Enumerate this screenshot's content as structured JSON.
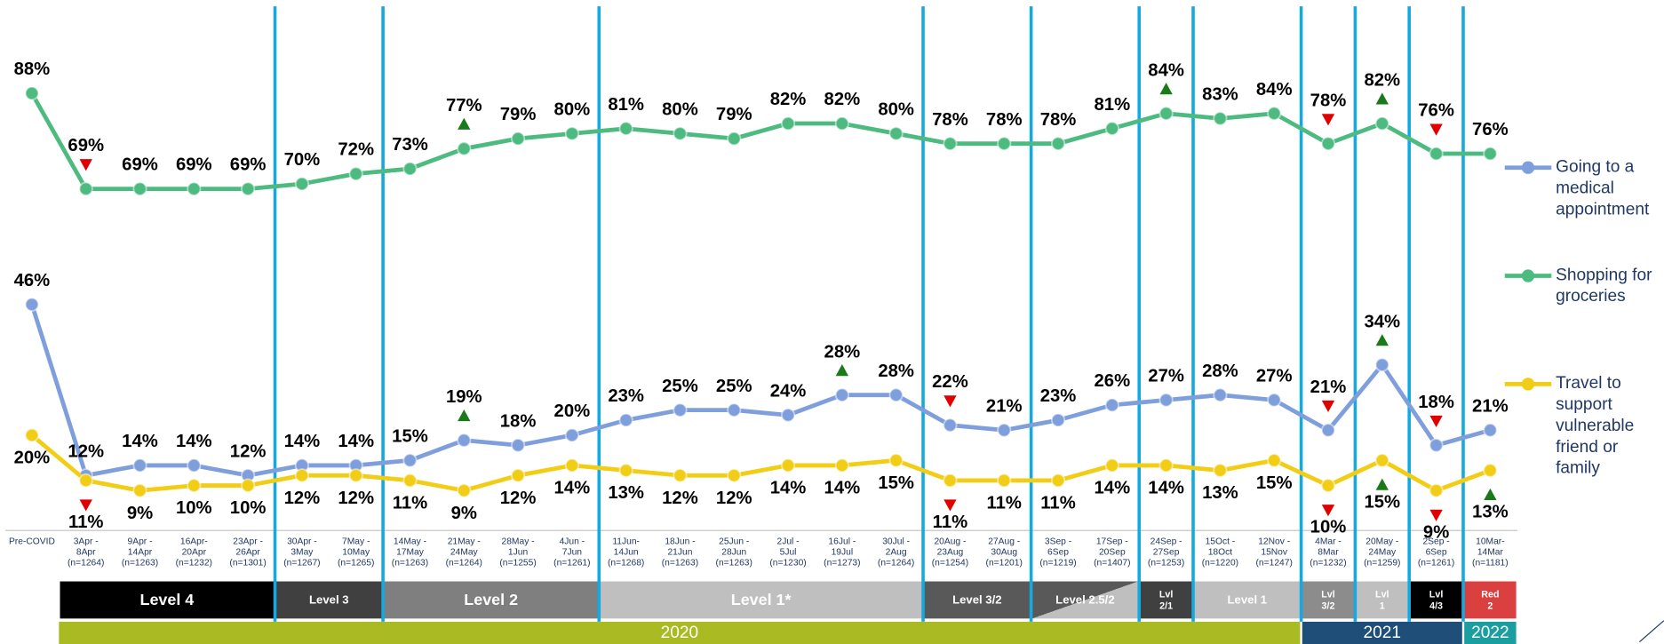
{
  "chart_data": {
    "type": "line",
    "categories": [
      "Pre-COVID",
      "3Apr -\n8Apr\n(n=1264)",
      "9Apr -\n14Apr\n(n=1263)",
      "16Apr-\n20Apr\n(n=1232)",
      "23Apr -\n26Apr\n(n=1301)",
      "30Apr -\n3May\n(n=1267)",
      "7May -\n10May\n(n=1265)",
      "14May -\n17May\n(n=1263)",
      "21May -\n24May\n(n=1264)",
      "28May -\n1Jun\n(n=1255)",
      "4Jun -\n7Jun\n(n=1261)",
      "11Jun-\n14Jun\n(n=1268)",
      "18Jun -\n21Jun\n(n=1263)",
      "25Jun -\n28Jun\n(n=1263)",
      "2Jul -\n5Jul\n(n=1230)",
      "16Jul -\n19Jul\n(n=1273)",
      "30Jul -\n2Aug\n(n=1264)",
      "20Aug -\n23Aug\n(n=1254)",
      "27Aug -\n30Aug\n(n=1201)",
      "3Sep -\n6Sep\n(n=1219)",
      "17Sep -\n20Sep\n(n=1407)",
      "24Sep -\n27Sep\n(n=1253)",
      "15Oct -\n18Oct\n(n=1220)",
      "12Nov -\n15Nov\n(n=1247)",
      "4Mar -\n8Mar\n(n=1232)",
      "20May -\n24May\n(n=1259)",
      "2Sep -\n6Sep\n(n=1261)",
      "10Mar-\n14Mar\n(n=1181)"
    ],
    "series": [
      {
        "name": "Going to a\nmedical\nappointment",
        "color": "#7f9fdc",
        "label_side": "above",
        "values": [
          46,
          12,
          14,
          14,
          12,
          14,
          14,
          15,
          19,
          18,
          20,
          23,
          25,
          25,
          24,
          28,
          28,
          22,
          21,
          23,
          26,
          27,
          28,
          27,
          21,
          34,
          18,
          21
        ],
        "value_labels": [
          "46%",
          "12%",
          "14%",
          "14%",
          "12%",
          "14%",
          "14%",
          "15%",
          "19%",
          "18%",
          "20%",
          "23%",
          "25%",
          "25%",
          "24%",
          "28%",
          "28%",
          "22%",
          "21%",
          "23%",
          "26%",
          "27%",
          "28%",
          "27%",
          "21%",
          "34%",
          "18%",
          "21%"
        ],
        "significance": {
          "8": "up",
          "15": "up",
          "17": "down",
          "24": "down",
          "25": "up",
          "26": "down"
        }
      },
      {
        "name": "Shopping for\ngroceries",
        "color": "#4dbb80",
        "label_side": "above",
        "values": [
          88,
          69,
          69,
          69,
          69,
          70,
          72,
          73,
          77,
          79,
          80,
          81,
          80,
          79,
          82,
          82,
          80,
          78,
          78,
          78,
          81,
          84,
          83,
          84,
          78,
          82,
          76,
          76
        ],
        "value_labels": [
          "88%",
          "69%",
          "69%",
          "69%",
          "69%",
          "70%",
          "72%",
          "73%",
          "77%",
          "79%",
          "80%",
          "81%",
          "80%",
          "79%",
          "82%",
          "82%",
          "80%",
          "78%",
          "78%",
          "78%",
          "81%",
          "84%",
          "83%",
          "84%",
          "78%",
          "82%",
          "76%",
          "76%"
        ],
        "significance": {
          "1": "down",
          "8": "up",
          "21": "up",
          "24": "down",
          "25": "up",
          "26": "down"
        }
      },
      {
        "name": "Travel to\nsupport\nvulnerable\nfriend or\nfamily",
        "color": "#f2cd16",
        "label_side": "below",
        "values": [
          20,
          11,
          9,
          10,
          10,
          12,
          12,
          11,
          9,
          12,
          14,
          13,
          12,
          12,
          14,
          14,
          15,
          11,
          11,
          11,
          14,
          14,
          13,
          15,
          10,
          15,
          9,
          13
        ],
        "value_labels": [
          "20%",
          "11%",
          "9%",
          "10%",
          "10%",
          "12%",
          "12%",
          "11%",
          "9%",
          "12%",
          "14%",
          "13%",
          "12%",
          "12%",
          "14%",
          "14%",
          "15%",
          "11%",
          "11%",
          "11%",
          "14%",
          "14%",
          "13%",
          "15%",
          "10%",
          "15%",
          "9%",
          "13%"
        ],
        "significance": {
          "1": "down",
          "17": "down",
          "24": "down",
          "25": "up",
          "26": "down",
          "27": "up"
        }
      }
    ],
    "ylim": [
      0,
      90
    ],
    "levels": [
      {
        "label": "Level 4",
        "color": "#000000"
      },
      {
        "label": "Level 3",
        "color": "#404040"
      },
      {
        "label": "Level 2",
        "color": "#7f7f7f"
      },
      {
        "label": "Level 1*",
        "color": "#bfbfbf"
      },
      {
        "label": "Level 3/2",
        "color": "#595959"
      },
      {
        "label": "Level 2.5/2",
        "color": "#595959"
      },
      {
        "label": "Lvl\n2/1",
        "color": "#404040"
      },
      {
        "label": "Level 1",
        "color": "#bfbfbf"
      },
      {
        "label": "Lvl\n3/2",
        "color": "#8c8c8c"
      },
      {
        "label": "Lvl\n1",
        "color": "#bfbfbf"
      },
      {
        "label": "Lvl\n4/3",
        "color": "#000000"
      },
      {
        "label": "Red\n2",
        "color": "#d9403f"
      }
    ],
    "years": [
      {
        "label": "2020",
        "color": "#a9ba22"
      },
      {
        "label": "2021",
        "color": "#1f4e79"
      },
      {
        "label": "2022",
        "color": "#1a9ea0"
      }
    ]
  }
}
